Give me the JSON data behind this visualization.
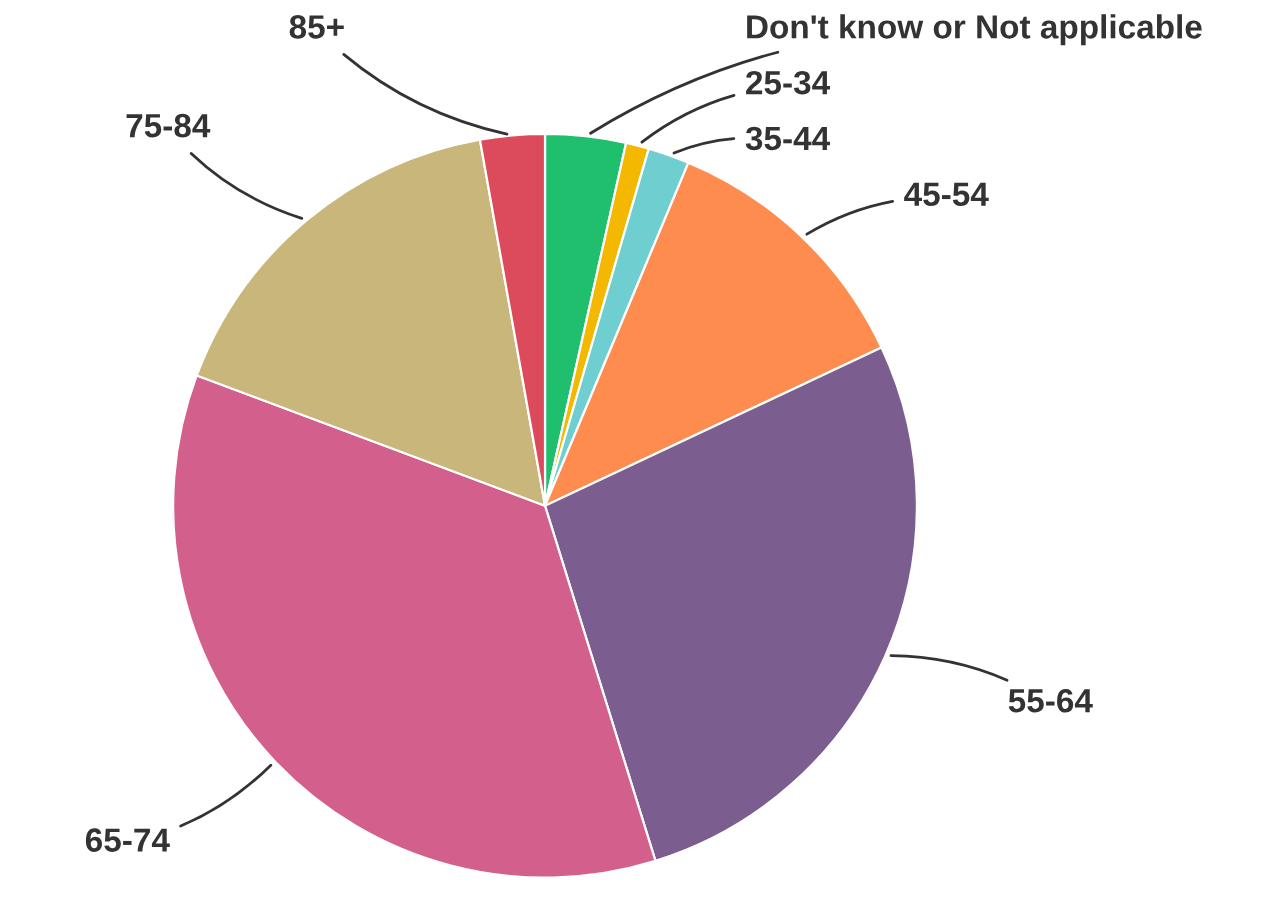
{
  "chart_data": {
    "type": "pie",
    "categories": [
      "Don't know or Not applicable",
      "25-34",
      "35-44",
      "45-54",
      "55-64",
      "65-74",
      "75-84",
      "85+"
    ],
    "values": [
      3.5,
      1,
      1.8,
      11.7,
      27.2,
      35.5,
      16.5,
      2.8
    ],
    "colors": [
      "#1fbf6e",
      "#f5b800",
      "#6fcfd0",
      "#ff8c4f",
      "#7b5e8f",
      "#d35f8d",
      "#c8b67a",
      "#dc4b5c"
    ],
    "legend": false
  }
}
